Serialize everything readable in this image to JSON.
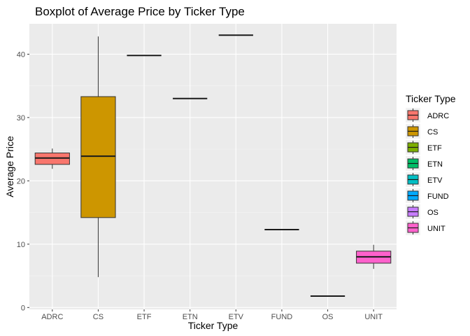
{
  "chart_data": {
    "type": "boxplot",
    "title": "Boxplot of Average Price by Ticker Type",
    "xlabel": "Ticker Type",
    "ylabel": "Average Price",
    "ylim": [
      -0.3,
      44.8
    ],
    "yticks": [
      0,
      10,
      20,
      30,
      40
    ],
    "grid": true,
    "legend": {
      "title": "Ticker Type",
      "position": "right"
    },
    "categories": [
      "ADRC",
      "CS",
      "ETF",
      "ETN",
      "ETV",
      "FUND",
      "OS",
      "UNIT"
    ],
    "colors": [
      "#F8766D",
      "#CD9600",
      "#7CAE00",
      "#00BE67",
      "#00BFC4",
      "#00A9FF",
      "#C77CFF",
      "#FF61CC"
    ],
    "boxes": [
      {
        "category": "ADRC",
        "min": 21.9,
        "q1": 22.6,
        "median": 23.6,
        "q3": 24.4,
        "max": 25.1
      },
      {
        "category": "CS",
        "min": 4.8,
        "q1": 14.2,
        "median": 23.9,
        "q3": 33.3,
        "max": 42.8
      },
      {
        "category": "ETF",
        "min": 39.8,
        "q1": 39.8,
        "median": 39.8,
        "q3": 39.8,
        "max": 39.8
      },
      {
        "category": "ETN",
        "min": 33.0,
        "q1": 33.0,
        "median": 33.0,
        "q3": 33.0,
        "max": 33.0
      },
      {
        "category": "ETV",
        "min": 43.0,
        "q1": 43.0,
        "median": 43.0,
        "q3": 43.0,
        "max": 43.0
      },
      {
        "category": "FUND",
        "min": 12.3,
        "q1": 12.3,
        "median": 12.3,
        "q3": 12.3,
        "max": 12.3
      },
      {
        "category": "OS",
        "min": 1.8,
        "q1": 1.8,
        "median": 1.8,
        "q3": 1.8,
        "max": 1.8
      },
      {
        "category": "UNIT",
        "min": 6.1,
        "q1": 7.0,
        "median": 8.0,
        "q3": 8.9,
        "max": 9.9
      }
    ]
  }
}
